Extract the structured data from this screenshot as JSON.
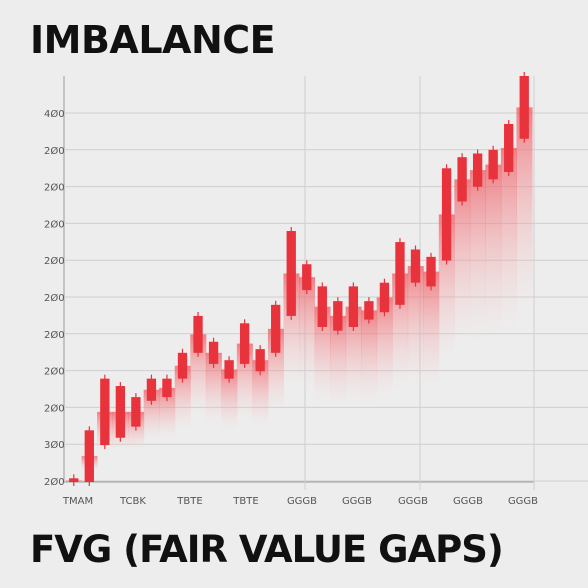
{
  "header": {
    "title": "IMBALANCE"
  },
  "footer": {
    "title": "FVG (FAIR VALUE GAPS)"
  },
  "chart_data": {
    "type": "bar",
    "title": "IMBALANCE",
    "subtitle": "FVG (FAIR VALUE GAPS)",
    "xlabel": "",
    "ylabel": "",
    "yticks": [
      "4Ø0",
      "2Ø0",
      "2Ø0",
      "2Ø0",
      "2Ø0",
      "2Ø0",
      "2Ø0",
      "2Ø0",
      "2Ø0",
      "3Ø0",
      "2Ø0"
    ],
    "xticks": [
      "TMAM",
      "TCBK",
      "TBTE",
      "TBTE",
      "GGGB",
      "GGGB",
      "GGGB",
      "GGGB",
      "GGGB"
    ],
    "ylim": [
      0,
      11
    ],
    "grid": true,
    "accent_color": "#e8323c",
    "fill_color": "#f5a3a6",
    "bars": [
      {
        "x": 0,
        "low": 0,
        "high": 0.1
      },
      {
        "x": 1,
        "low": 0,
        "high": 1.4
      },
      {
        "x": 2,
        "low": 1,
        "high": 2.8
      },
      {
        "x": 3,
        "low": 1.2,
        "high": 2.6
      },
      {
        "x": 4,
        "low": 1.5,
        "high": 2.3
      },
      {
        "x": 5,
        "low": 2.2,
        "high": 2.8
      },
      {
        "x": 6,
        "low": 2.3,
        "high": 2.8
      },
      {
        "x": 7,
        "low": 2.8,
        "high": 3.5
      },
      {
        "x": 8,
        "low": 3.5,
        "high": 4.5
      },
      {
        "x": 9,
        "low": 3.2,
        "high": 3.8
      },
      {
        "x": 10,
        "low": 2.8,
        "high": 3.3
      },
      {
        "x": 11,
        "low": 3.2,
        "high": 4.3
      },
      {
        "x": 12,
        "low": 3,
        "high": 3.6
      },
      {
        "x": 13,
        "low": 3.5,
        "high": 4.8
      },
      {
        "x": 14,
        "low": 4.5,
        "high": 6.8
      },
      {
        "x": 15,
        "low": 5.2,
        "high": 5.9
      },
      {
        "x": 16,
        "low": 4.2,
        "high": 5.3
      },
      {
        "x": 17,
        "low": 4.1,
        "high": 4.9
      },
      {
        "x": 18,
        "low": 4.2,
        "high": 5.3
      },
      {
        "x": 19,
        "low": 4.4,
        "high": 4.9
      },
      {
        "x": 20,
        "low": 4.6,
        "high": 5.4
      },
      {
        "x": 21,
        "low": 4.8,
        "high": 6.5
      },
      {
        "x": 22,
        "low": 5.4,
        "high": 6.3
      },
      {
        "x": 23,
        "low": 5.3,
        "high": 6.1
      },
      {
        "x": 24,
        "low": 6,
        "high": 8.5
      },
      {
        "x": 25,
        "low": 7.6,
        "high": 8.8
      },
      {
        "x": 26,
        "low": 8,
        "high": 8.9
      },
      {
        "x": 27,
        "low": 8.2,
        "high": 9
      },
      {
        "x": 28,
        "low": 8.4,
        "high": 9.7
      },
      {
        "x": 29,
        "low": 9.3,
        "high": 11
      }
    ]
  }
}
